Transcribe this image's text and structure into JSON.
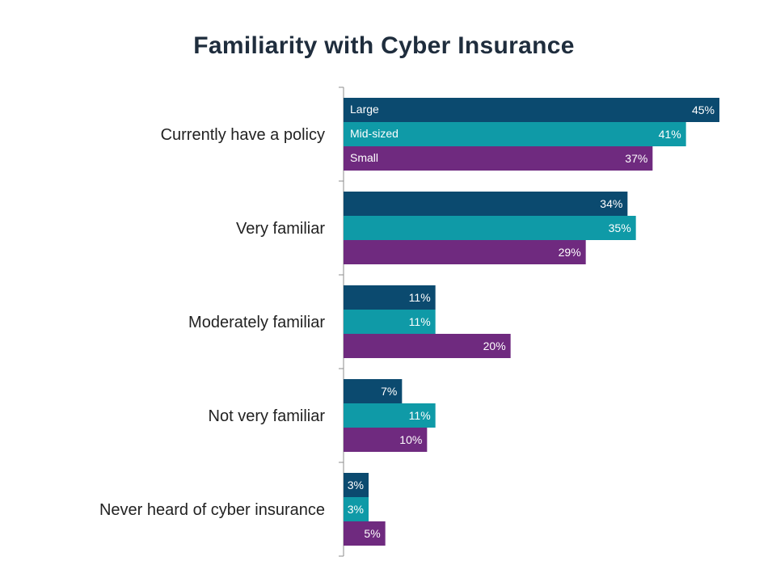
{
  "chart_data": {
    "type": "bar",
    "orientation": "horizontal",
    "title": "Familiarity with Cyber Insurance",
    "categories": [
      "Currently have a policy",
      "Very familiar",
      "Moderately familiar",
      "Not very familiar",
      "Never heard of cyber insurance"
    ],
    "series": [
      {
        "name": "Large",
        "color": "#0b4a6f",
        "values": [
          45,
          34,
          11,
          7,
          3
        ]
      },
      {
        "name": "Mid-sized",
        "color": "#0f9aa7",
        "values": [
          41,
          35,
          11,
          11,
          3
        ]
      },
      {
        "name": "Small",
        "color": "#6f2a7f",
        "values": [
          37,
          29,
          20,
          10,
          5
        ]
      }
    ],
    "value_suffix": "%",
    "xlim": [
      0,
      45
    ],
    "legend": "inline labels inside first group bars",
    "grid": false
  }
}
